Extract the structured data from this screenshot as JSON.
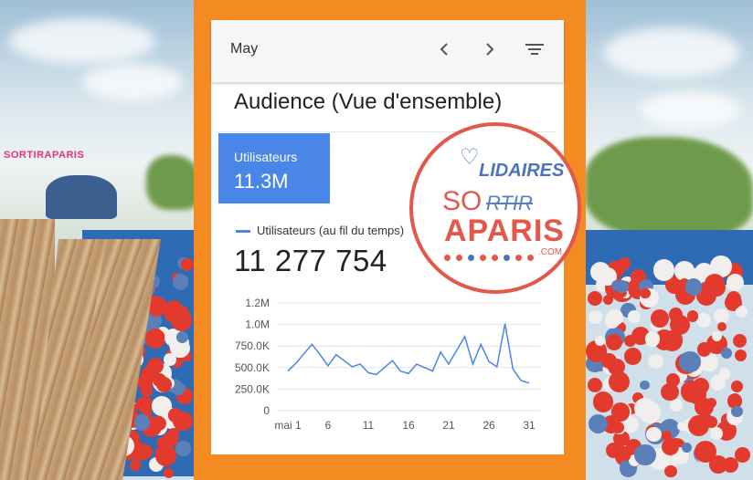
{
  "background": {
    "sign_text": "SORTIRAPARIS",
    "colors": {
      "frame": "#f38a22",
      "pool": "#2f6bb4",
      "ball_red": "#e33a2e",
      "ball_blue": "#5b7fb8",
      "ball_white": "#f1eeee"
    }
  },
  "app": {
    "period_label": "May",
    "icons": [
      "chevron-left-icon",
      "chevron-right-icon",
      "filter-icon"
    ],
    "section_title": "Audience (Vue d'ensemble)",
    "metric_tile": {
      "label": "Utilisateurs",
      "value": "11.3M"
    },
    "series_label": "Utilisateurs (au fil du temps)",
    "total_value": "11 277 754",
    "accent_color": "#4a86e8"
  },
  "logo": {
    "top_word": "LIDAIRES",
    "prefix": "SO",
    "strike_word": "RTIR",
    "main_word": "APARIS",
    "suffix": ".COM"
  },
  "chart_data": {
    "type": "line",
    "x_tick_labels": [
      "mai 1",
      "6",
      "11",
      "16",
      "21",
      "26",
      "31"
    ],
    "y_tick_labels": [
      "0",
      "250.0K",
      "500.0K",
      "750.0K",
      "1.0M",
      "1.2M"
    ],
    "ylim": [
      0,
      1250000
    ],
    "grid": true,
    "series": [
      {
        "x": [
          1,
          2,
          3,
          4,
          5,
          6,
          7,
          8,
          9,
          10,
          11,
          12,
          13,
          14,
          15,
          16,
          17,
          18,
          19,
          20,
          21,
          22,
          23,
          24,
          25,
          26,
          27,
          28,
          29,
          30,
          31
        ],
        "values": [
          460000,
          550000,
          660000,
          770000,
          650000,
          520000,
          650000,
          580000,
          510000,
          540000,
          440000,
          420000,
          500000,
          580000,
          460000,
          430000,
          540000,
          500000,
          460000,
          680000,
          540000,
          700000,
          860000,
          540000,
          770000,
          570000,
          510000,
          1010000,
          480000,
          350000,
          320000
        ]
      }
    ]
  }
}
